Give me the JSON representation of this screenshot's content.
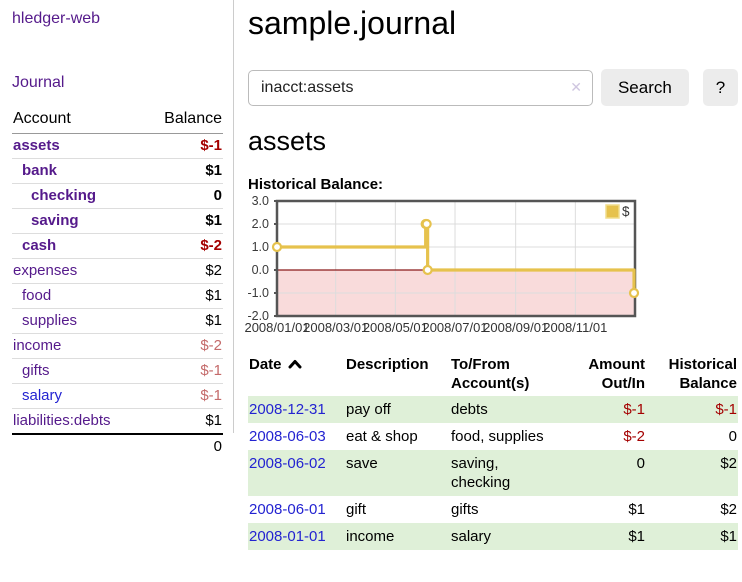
{
  "app": {
    "brand": "hledger-web"
  },
  "sidebar": {
    "journal_link": "Journal",
    "accounts": {
      "headers": {
        "account": "Account",
        "balance": "Balance"
      },
      "rows": [
        {
          "account": "assets",
          "balance": "$-1",
          "depth": 1,
          "bold": true,
          "balance_tone": "negative-strong",
          "link_color": "purple"
        },
        {
          "account": "bank",
          "balance": "$1",
          "depth": 2,
          "bold": true,
          "balance_tone": "normal",
          "link_color": "purple"
        },
        {
          "account": "checking",
          "balance": "0",
          "depth": 3,
          "bold": true,
          "balance_tone": "normal",
          "link_color": "purple"
        },
        {
          "account": "saving",
          "balance": "$1",
          "depth": 3,
          "bold": true,
          "balance_tone": "normal",
          "link_color": "purple"
        },
        {
          "account": "cash",
          "balance": "$-2",
          "depth": 2,
          "bold": true,
          "balance_tone": "negative-strong",
          "link_color": "purple"
        },
        {
          "account": "expenses",
          "balance": "$2",
          "depth": 1,
          "bold": false,
          "balance_tone": "normal",
          "link_color": "purple"
        },
        {
          "account": "food",
          "balance": "$1",
          "depth": 2,
          "bold": false,
          "balance_tone": "normal",
          "link_color": "purple"
        },
        {
          "account": "supplies",
          "balance": "$1",
          "depth": 2,
          "bold": false,
          "balance_tone": "normal",
          "link_color": "purple"
        },
        {
          "account": "income",
          "balance": "$-2",
          "depth": 1,
          "bold": false,
          "balance_tone": "negative-muted",
          "link_color": "purple"
        },
        {
          "account": "gifts",
          "balance": "$-1",
          "depth": 2,
          "bold": false,
          "balance_tone": "negative-muted",
          "link_color": "purple"
        },
        {
          "account": "salary",
          "balance": "$-1",
          "depth": 2,
          "bold": false,
          "balance_tone": "negative-muted",
          "link_color": "blue"
        },
        {
          "account": "liabilities:debts",
          "balance": "$1",
          "depth": 1,
          "bold": false,
          "balance_tone": "normal",
          "link_color": "purple"
        }
      ],
      "total": "0"
    }
  },
  "main": {
    "title": "sample.journal",
    "search": {
      "value": "inacct:assets",
      "clear_icon": "✕",
      "search_button": "Search",
      "help_button": "?"
    },
    "account_heading": "assets",
    "section_label": "Historical Balance:"
  },
  "chart_data": {
    "type": "line",
    "title": "Historical Balance:",
    "step": "after",
    "series": [
      {
        "name": "$",
        "color": "#e6c24d",
        "points": [
          {
            "date": "2008-01-01",
            "day": 0,
            "value": 1
          },
          {
            "date": "2008-06-01",
            "day": 152,
            "value": 2
          },
          {
            "date": "2008-06-02",
            "day": 153,
            "value": 2
          },
          {
            "date": "2008-06-03",
            "day": 154,
            "value": 0
          },
          {
            "date": "2008-12-31",
            "day": 365,
            "value": -1
          }
        ]
      }
    ],
    "x_ticks": [
      {
        "label": "2008/01/01",
        "day": 0
      },
      {
        "label": "2008/03/01",
        "day": 60
      },
      {
        "label": "2008/05/01",
        "day": 121
      },
      {
        "label": "2008/07/01",
        "day": 182
      },
      {
        "label": "2008/09/01",
        "day": 244
      },
      {
        "label": "2008/11/01",
        "day": 305
      }
    ],
    "x_domain_days": [
      0,
      366
    ],
    "y_ticks": [
      3.0,
      2.0,
      1.0,
      0.0,
      -1.0,
      -2.0
    ],
    "ylim": [
      -2,
      3
    ],
    "legend": {
      "label": "$",
      "position": "top-right"
    },
    "grid": true,
    "negative_region_color": "#f9dbdb",
    "zero_line_color": "#8b1a1a"
  },
  "register": {
    "headers": {
      "date": "Date",
      "description": "Description",
      "accounts": "To/From Account(s)",
      "amount": "Amount Out/In",
      "balance": "Historical Balance"
    },
    "rows": [
      {
        "date": "2008-12-31",
        "description": "pay off",
        "accounts": "debts",
        "amount": "$-1",
        "amount_negative": true,
        "balance": "$-1",
        "balance_negative": true,
        "shaded": true
      },
      {
        "date": "2008-06-03",
        "description": "eat & shop",
        "accounts": "food, supplies",
        "amount": "$-2",
        "amount_negative": true,
        "balance": "0",
        "balance_negative": false,
        "shaded": false
      },
      {
        "date": "2008-06-02",
        "description": "save",
        "accounts": "saving, checking",
        "amount": "0",
        "amount_negative": false,
        "balance": "$2",
        "balance_negative": false,
        "shaded": true
      },
      {
        "date": "2008-06-01",
        "description": "gift",
        "accounts": "gifts",
        "amount": "$1",
        "amount_negative": false,
        "balance": "$2",
        "balance_negative": false,
        "shaded": false
      },
      {
        "date": "2008-01-01",
        "description": "income",
        "accounts": "salary",
        "amount": "$1",
        "amount_negative": false,
        "balance": "$1",
        "balance_negative": false,
        "shaded": true
      }
    ]
  },
  "colors": {
    "purple_link": "#551a8b",
    "blue_link": "#2323d1",
    "negative_strong": "#a40000",
    "negative_muted": "#c46a6a",
    "row_shade_green": "#dff0d8",
    "chart_negative_fill": "#f9dbdb",
    "series_gold": "#e6c24d",
    "zero_line": "#8b1a1a"
  }
}
